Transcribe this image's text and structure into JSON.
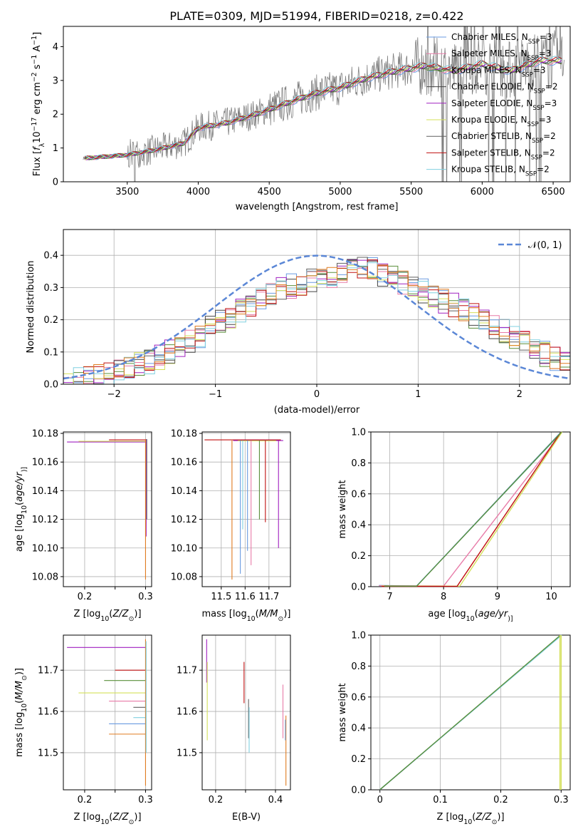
{
  "figure": {
    "title": "PLATE=0309, MJD=51994, FIBERID=0218, z=0.422"
  },
  "colors": {
    "chabrier_miles": "#6a9be0",
    "salpeter_miles": "#e87ba8",
    "kroupa_miles": "#5a8f3a",
    "chabrier_elodie": "#444444",
    "salpeter_elodie": "#a020c0",
    "kroupa_elodie": "#d4e05a",
    "chabrier_stelib": "#606060",
    "salpeter_stelib": "#c01010",
    "kroupa_stelib": "#80d0e0",
    "orange": "#e07b20",
    "gauss": "#5b87d6",
    "grid": "#b0b0b0",
    "observed": "#808080"
  },
  "legend_spectrum": [
    {
      "label": "Chabrier MILES, N",
      "sub": "SSP",
      "tail": "=3",
      "color": "#6a9be0"
    },
    {
      "label": "Salpeter MILES, N",
      "sub": "SSP",
      "tail": "=3",
      "color": "#e87ba8"
    },
    {
      "label": "Kroupa MILES, N",
      "sub": "SSP",
      "tail": "=3",
      "color": "#5a8f3a"
    },
    {
      "label": "Chabrier ELODIE, N",
      "sub": "SSP",
      "tail": "=2",
      "color": "#444444"
    },
    {
      "label": "Salpeter ELODIE, N",
      "sub": "SSP",
      "tail": "=3",
      "color": "#a020c0"
    },
    {
      "label": "Kroupa ELODIE, N",
      "sub": "SSP",
      "tail": "=3",
      "color": "#d4e05a"
    },
    {
      "label": "Chabrier STELIB, N",
      "sub": "SSP",
      "tail": "=2",
      "color": "#606060"
    },
    {
      "label": "Salpeter STELIB, N",
      "sub": "SSP",
      "tail": "=2",
      "color": "#c01010"
    },
    {
      "label": "Kroupa STELIB, N",
      "sub": "SSP",
      "tail": "=2",
      "color": "#80d0e0"
    }
  ],
  "legend_hist": {
    "label": "𝒩(0, 1)",
    "color": "#5b87d6"
  },
  "chart_data": [
    {
      "id": "spectrum",
      "type": "line",
      "title": "PLATE=0309, MJD=51994, FIBERID=0218, z=0.422",
      "xlabel": "wavelength [Angstrom, rest frame]",
      "ylabel_parts": [
        "Flux [",
        "f",
        "λ",
        "10",
        "−17",
        " erg cm",
        "−2",
        " s",
        "−1",
        " A",
        "−1",
        "]"
      ],
      "xlim": [
        3050,
        6620
      ],
      "ylim": [
        0,
        4.6
      ],
      "xticks": [
        3500,
        4000,
        4500,
        5000,
        5500,
        6000,
        6500
      ],
      "yticks": [
        0,
        1,
        2,
        3,
        4
      ],
      "continuum": {
        "x": [
          3200,
          3350,
          3500,
          3700,
          3900,
          4000,
          4200,
          4400,
          4600,
          4800,
          5000,
          5200,
          5400,
          5600,
          5800,
          6000,
          6200,
          6400,
          6550
        ],
        "y": [
          0.7,
          0.75,
          0.8,
          0.95,
          1.15,
          1.6,
          1.75,
          2.0,
          2.3,
          2.6,
          2.8,
          3.1,
          3.3,
          3.45,
          3.3,
          3.5,
          3.3,
          3.6,
          3.6
        ]
      },
      "observed_range": [
        3190,
        6580
      ],
      "grid": false
    },
    {
      "id": "residual_hist",
      "type": "histogram",
      "xlabel": "(data-model)/error",
      "ylabel": "Normed distribution",
      "xlim": [
        -2.5,
        2.5
      ],
      "ylim": [
        0,
        0.48
      ],
      "xticks": [
        -2,
        -1,
        0,
        1,
        2
      ],
      "yticks": [
        0.0,
        0.1,
        0.2,
        0.3,
        0.4
      ],
      "bin_width": 0.1,
      "envelope": {
        "x": [
          -2.5,
          -2.0,
          -1.5,
          -1.0,
          -0.5,
          0.0,
          0.5,
          1.0,
          1.5,
          2.0,
          2.5
        ],
        "y": [
          0.005,
          0.03,
          0.09,
          0.18,
          0.28,
          0.33,
          0.36,
          0.3,
          0.22,
          0.14,
          0.05
        ]
      },
      "gaussian": {
        "mean": 0,
        "sigma": 1
      },
      "grid": true
    },
    {
      "id": "age_vs_Z",
      "type": "scatter",
      "xlabel_parts": [
        "Z [",
        "log",
        "10",
        "(",
        "Z/Z",
        "⊙",
        ")]"
      ],
      "ylabel_parts": [
        "age  [",
        "log",
        "10",
        "(",
        "age/yr",
        ")]"
      ],
      "xlim": [
        0.165,
        0.31
      ],
      "ylim": [
        10.073,
        10.181
      ],
      "xticks": [
        0.2,
        0.25,
        0.3
      ],
      "xticklabels": [
        "0.2",
        "",
        "0.3"
      ],
      "yticks": [
        10.08,
        10.1,
        10.12,
        10.14,
        10.16,
        10.18
      ],
      "grid": true
    },
    {
      "id": "age_vs_mass",
      "type": "scatter",
      "xlabel_parts": [
        "mass [",
        "log",
        "10",
        "(",
        "M/M",
        "⊙",
        ")]"
      ],
      "xlim": [
        11.42,
        11.79
      ],
      "ylim": [
        10.073,
        10.181
      ],
      "xticks": [
        11.5,
        11.6,
        11.7
      ],
      "yticks": [
        10.08,
        10.1,
        10.12,
        10.14,
        10.16,
        10.18
      ],
      "grid": true
    },
    {
      "id": "cum_mass_age",
      "type": "line",
      "xlabel_parts": [
        "age  [",
        "log",
        "10",
        "(",
        "age/yr",
        ")]"
      ],
      "ylabel": "mass weight",
      "xlim": [
        6.65,
        10.35
      ],
      "ylim": [
        0,
        1
      ],
      "xticks": [
        7,
        8,
        9,
        10
      ],
      "yticks": [
        0.0,
        0.2,
        0.4,
        0.6,
        0.8,
        1.0
      ],
      "grid": true
    },
    {
      "id": "mass_vs_Z",
      "type": "scatter",
      "xlabel_parts": [
        "Z [",
        "log",
        "10",
        "(",
        "Z/Z",
        "⊙",
        ")]"
      ],
      "ylabel_parts": [
        "mass [",
        "log",
        "10",
        "(",
        "M/M",
        "⊙",
        ")]"
      ],
      "xlim": [
        0.165,
        0.31
      ],
      "ylim": [
        11.41,
        11.785
      ],
      "xticks": [
        0.2,
        0.25,
        0.3
      ],
      "xticklabels": [
        "0.2",
        "",
        "0.3"
      ],
      "yticks": [
        11.5,
        11.6,
        11.7
      ],
      "grid": true
    },
    {
      "id": "mass_vs_ebv",
      "type": "scatter",
      "xlabel": "E(B-V)",
      "xlim": [
        0.155,
        0.45
      ],
      "ylim": [
        11.41,
        11.785
      ],
      "xticks": [
        0.2,
        0.3,
        0.4
      ],
      "xticklabels": [
        "0.2",
        "",
        "0.4"
      ],
      "yticks": [
        11.5,
        11.6,
        11.7
      ],
      "grid": true
    },
    {
      "id": "cum_mass_Z",
      "type": "line",
      "xlabel_parts": [
        "Z [",
        "log",
        "10",
        "(",
        "Z/Z",
        "⊙",
        ")]"
      ],
      "ylabel": "mass weight",
      "xlim": [
        -0.015,
        0.315
      ],
      "ylim": [
        0,
        1
      ],
      "xticks": [
        0.0,
        0.1,
        0.2,
        0.3
      ],
      "yticks": [
        0.0,
        0.2,
        0.4,
        0.6,
        0.8,
        1.0
      ],
      "grid": true
    }
  ]
}
